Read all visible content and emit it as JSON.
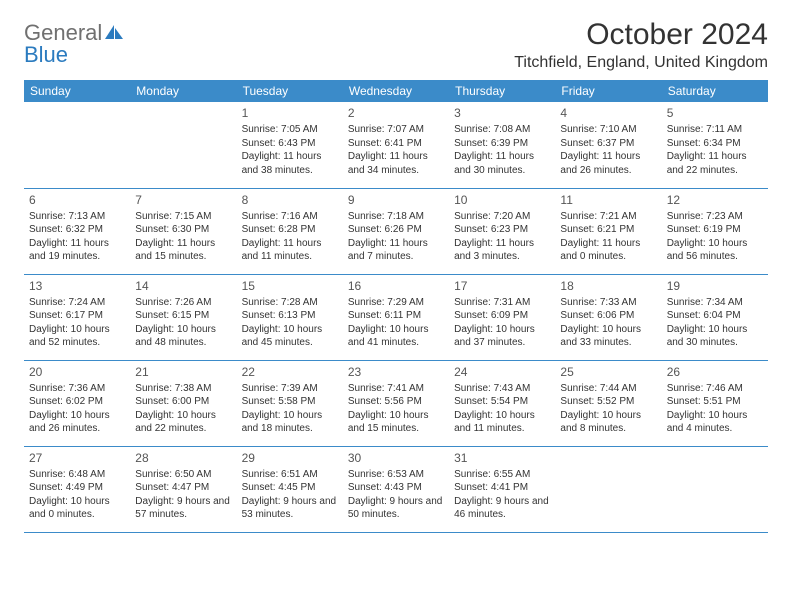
{
  "logo": {
    "text_gray": "General",
    "text_blue": "Blue",
    "icon_color": "#2b7bbf"
  },
  "title": "October 2024",
  "location": "Titchfield, England, United Kingdom",
  "colors": {
    "header_bg": "#3b8bc9",
    "header_text": "#ffffff",
    "border": "#3b8bc9",
    "body_text": "#333333"
  },
  "day_headers": [
    "Sunday",
    "Monday",
    "Tuesday",
    "Wednesday",
    "Thursday",
    "Friday",
    "Saturday"
  ],
  "weeks": [
    [
      null,
      null,
      {
        "n": "1",
        "sr": "Sunrise: 7:05 AM",
        "ss": "Sunset: 6:43 PM",
        "dl": "Daylight: 11 hours and 38 minutes."
      },
      {
        "n": "2",
        "sr": "Sunrise: 7:07 AM",
        "ss": "Sunset: 6:41 PM",
        "dl": "Daylight: 11 hours and 34 minutes."
      },
      {
        "n": "3",
        "sr": "Sunrise: 7:08 AM",
        "ss": "Sunset: 6:39 PM",
        "dl": "Daylight: 11 hours and 30 minutes."
      },
      {
        "n": "4",
        "sr": "Sunrise: 7:10 AM",
        "ss": "Sunset: 6:37 PM",
        "dl": "Daylight: 11 hours and 26 minutes."
      },
      {
        "n": "5",
        "sr": "Sunrise: 7:11 AM",
        "ss": "Sunset: 6:34 PM",
        "dl": "Daylight: 11 hours and 22 minutes."
      }
    ],
    [
      {
        "n": "6",
        "sr": "Sunrise: 7:13 AM",
        "ss": "Sunset: 6:32 PM",
        "dl": "Daylight: 11 hours and 19 minutes."
      },
      {
        "n": "7",
        "sr": "Sunrise: 7:15 AM",
        "ss": "Sunset: 6:30 PM",
        "dl": "Daylight: 11 hours and 15 minutes."
      },
      {
        "n": "8",
        "sr": "Sunrise: 7:16 AM",
        "ss": "Sunset: 6:28 PM",
        "dl": "Daylight: 11 hours and 11 minutes."
      },
      {
        "n": "9",
        "sr": "Sunrise: 7:18 AM",
        "ss": "Sunset: 6:26 PM",
        "dl": "Daylight: 11 hours and 7 minutes."
      },
      {
        "n": "10",
        "sr": "Sunrise: 7:20 AM",
        "ss": "Sunset: 6:23 PM",
        "dl": "Daylight: 11 hours and 3 minutes."
      },
      {
        "n": "11",
        "sr": "Sunrise: 7:21 AM",
        "ss": "Sunset: 6:21 PM",
        "dl": "Daylight: 11 hours and 0 minutes."
      },
      {
        "n": "12",
        "sr": "Sunrise: 7:23 AM",
        "ss": "Sunset: 6:19 PM",
        "dl": "Daylight: 10 hours and 56 minutes."
      }
    ],
    [
      {
        "n": "13",
        "sr": "Sunrise: 7:24 AM",
        "ss": "Sunset: 6:17 PM",
        "dl": "Daylight: 10 hours and 52 minutes."
      },
      {
        "n": "14",
        "sr": "Sunrise: 7:26 AM",
        "ss": "Sunset: 6:15 PM",
        "dl": "Daylight: 10 hours and 48 minutes."
      },
      {
        "n": "15",
        "sr": "Sunrise: 7:28 AM",
        "ss": "Sunset: 6:13 PM",
        "dl": "Daylight: 10 hours and 45 minutes."
      },
      {
        "n": "16",
        "sr": "Sunrise: 7:29 AM",
        "ss": "Sunset: 6:11 PM",
        "dl": "Daylight: 10 hours and 41 minutes."
      },
      {
        "n": "17",
        "sr": "Sunrise: 7:31 AM",
        "ss": "Sunset: 6:09 PM",
        "dl": "Daylight: 10 hours and 37 minutes."
      },
      {
        "n": "18",
        "sr": "Sunrise: 7:33 AM",
        "ss": "Sunset: 6:06 PM",
        "dl": "Daylight: 10 hours and 33 minutes."
      },
      {
        "n": "19",
        "sr": "Sunrise: 7:34 AM",
        "ss": "Sunset: 6:04 PM",
        "dl": "Daylight: 10 hours and 30 minutes."
      }
    ],
    [
      {
        "n": "20",
        "sr": "Sunrise: 7:36 AM",
        "ss": "Sunset: 6:02 PM",
        "dl": "Daylight: 10 hours and 26 minutes."
      },
      {
        "n": "21",
        "sr": "Sunrise: 7:38 AM",
        "ss": "Sunset: 6:00 PM",
        "dl": "Daylight: 10 hours and 22 minutes."
      },
      {
        "n": "22",
        "sr": "Sunrise: 7:39 AM",
        "ss": "Sunset: 5:58 PM",
        "dl": "Daylight: 10 hours and 18 minutes."
      },
      {
        "n": "23",
        "sr": "Sunrise: 7:41 AM",
        "ss": "Sunset: 5:56 PM",
        "dl": "Daylight: 10 hours and 15 minutes."
      },
      {
        "n": "24",
        "sr": "Sunrise: 7:43 AM",
        "ss": "Sunset: 5:54 PM",
        "dl": "Daylight: 10 hours and 11 minutes."
      },
      {
        "n": "25",
        "sr": "Sunrise: 7:44 AM",
        "ss": "Sunset: 5:52 PM",
        "dl": "Daylight: 10 hours and 8 minutes."
      },
      {
        "n": "26",
        "sr": "Sunrise: 7:46 AM",
        "ss": "Sunset: 5:51 PM",
        "dl": "Daylight: 10 hours and 4 minutes."
      }
    ],
    [
      {
        "n": "27",
        "sr": "Sunrise: 6:48 AM",
        "ss": "Sunset: 4:49 PM",
        "dl": "Daylight: 10 hours and 0 minutes."
      },
      {
        "n": "28",
        "sr": "Sunrise: 6:50 AM",
        "ss": "Sunset: 4:47 PM",
        "dl": "Daylight: 9 hours and 57 minutes."
      },
      {
        "n": "29",
        "sr": "Sunrise: 6:51 AM",
        "ss": "Sunset: 4:45 PM",
        "dl": "Daylight: 9 hours and 53 minutes."
      },
      {
        "n": "30",
        "sr": "Sunrise: 6:53 AM",
        "ss": "Sunset: 4:43 PM",
        "dl": "Daylight: 9 hours and 50 minutes."
      },
      {
        "n": "31",
        "sr": "Sunrise: 6:55 AM",
        "ss": "Sunset: 4:41 PM",
        "dl": "Daylight: 9 hours and 46 minutes."
      },
      null,
      null
    ]
  ]
}
